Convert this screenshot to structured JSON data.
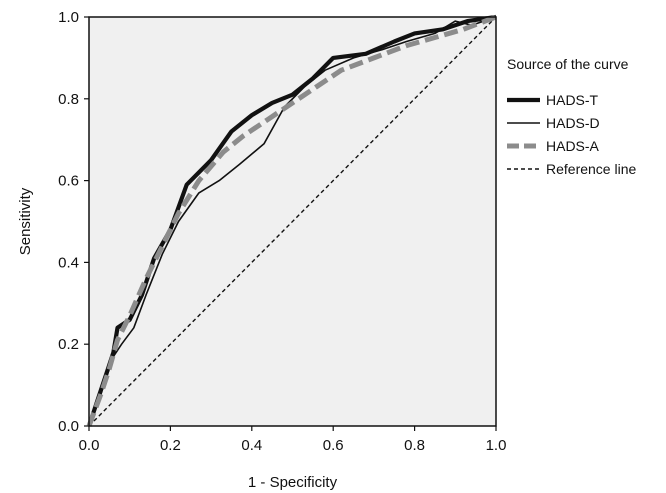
{
  "chart_data": {
    "type": "line",
    "xlabel": "1 - Specificity",
    "ylabel": "Sensitivity",
    "xlim": [
      0,
      1
    ],
    "ylim": [
      0,
      1
    ],
    "xticks": [
      "0.0",
      "0.2",
      "0.4",
      "0.6",
      "0.8",
      "1.0"
    ],
    "yticks": [
      "0.0",
      "0.2",
      "0.4",
      "0.6",
      "0.8",
      "1.0"
    ],
    "plot_background": "#f0f0f0",
    "grid": false,
    "legend": {
      "title": "Source of the curve",
      "position": "right"
    },
    "series": [
      {
        "name": "HADS-T",
        "color": "#111111",
        "style": "thick-solid",
        "points": [
          [
            0,
            0
          ],
          [
            0.02,
            0.06
          ],
          [
            0.04,
            0.12
          ],
          [
            0.06,
            0.18
          ],
          [
            0.07,
            0.24
          ],
          [
            0.1,
            0.26
          ],
          [
            0.13,
            0.32
          ],
          [
            0.16,
            0.41
          ],
          [
            0.2,
            0.48
          ],
          [
            0.24,
            0.59
          ],
          [
            0.3,
            0.65
          ],
          [
            0.35,
            0.72
          ],
          [
            0.4,
            0.76
          ],
          [
            0.45,
            0.79
          ],
          [
            0.5,
            0.81
          ],
          [
            0.55,
            0.85
          ],
          [
            0.6,
            0.9
          ],
          [
            0.68,
            0.91
          ],
          [
            0.75,
            0.94
          ],
          [
            0.8,
            0.96
          ],
          [
            0.87,
            0.97
          ],
          [
            0.93,
            0.99
          ],
          [
            1,
            1
          ]
        ]
      },
      {
        "name": "HADS-D",
        "color": "#111111",
        "style": "thin-solid",
        "points": [
          [
            0,
            0
          ],
          [
            0.02,
            0.05
          ],
          [
            0.04,
            0.11
          ],
          [
            0.06,
            0.17
          ],
          [
            0.08,
            0.2
          ],
          [
            0.11,
            0.24
          ],
          [
            0.14,
            0.32
          ],
          [
            0.18,
            0.42
          ],
          [
            0.22,
            0.5
          ],
          [
            0.27,
            0.57
          ],
          [
            0.32,
            0.6
          ],
          [
            0.37,
            0.64
          ],
          [
            0.43,
            0.69
          ],
          [
            0.48,
            0.78
          ],
          [
            0.53,
            0.83
          ],
          [
            0.58,
            0.87
          ],
          [
            0.65,
            0.9
          ],
          [
            0.72,
            0.92
          ],
          [
            0.78,
            0.94
          ],
          [
            0.85,
            0.96
          ],
          [
            0.9,
            0.99
          ],
          [
            0.94,
            0.98
          ],
          [
            1,
            1
          ]
        ]
      },
      {
        "name": "HADS-A",
        "color": "#8c8c8c",
        "style": "dashed-thick",
        "points": [
          [
            0,
            0
          ],
          [
            0.03,
            0.08
          ],
          [
            0.05,
            0.14
          ],
          [
            0.07,
            0.21
          ],
          [
            0.1,
            0.27
          ],
          [
            0.14,
            0.36
          ],
          [
            0.18,
            0.44
          ],
          [
            0.22,
            0.52
          ],
          [
            0.27,
            0.6
          ],
          [
            0.33,
            0.67
          ],
          [
            0.38,
            0.71
          ],
          [
            0.44,
            0.75
          ],
          [
            0.5,
            0.79
          ],
          [
            0.56,
            0.83
          ],
          [
            0.62,
            0.87
          ],
          [
            0.7,
            0.9
          ],
          [
            0.78,
            0.93
          ],
          [
            0.85,
            0.95
          ],
          [
            0.92,
            0.97
          ],
          [
            1,
            1
          ]
        ]
      },
      {
        "name": "Reference line",
        "color": "#111111",
        "style": "dashed-thin",
        "points": [
          [
            0,
            0
          ],
          [
            1,
            1
          ]
        ]
      }
    ]
  }
}
